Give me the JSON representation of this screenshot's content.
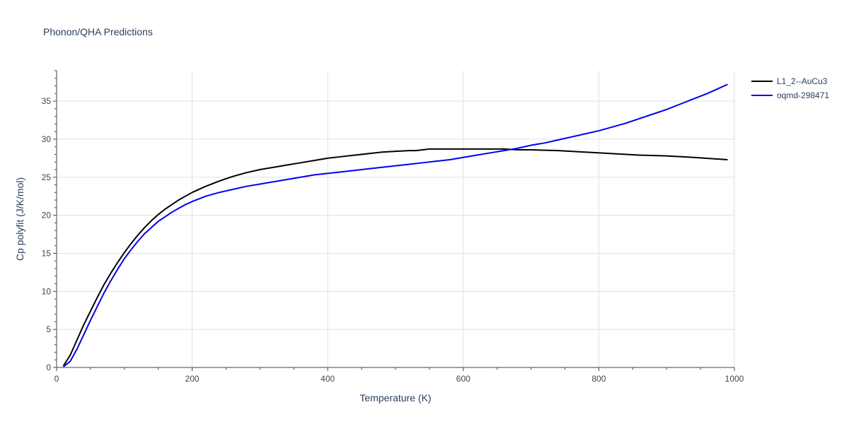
{
  "chart_data": {
    "type": "line",
    "title": "Phonon/QHA Predictions",
    "xlabel": "Temperature (K)",
    "ylabel": "Cp polyfit (J/K/mol)",
    "xlim": [
      0,
      1000
    ],
    "ylim": [
      0,
      39
    ],
    "xticks": [
      0,
      200,
      400,
      600,
      800,
      1000
    ],
    "yticks": [
      0,
      5,
      10,
      15,
      20,
      25,
      30,
      35
    ],
    "grid": true,
    "legend_position": "top-right",
    "series": [
      {
        "name": "L1_2--AuCu3",
        "color": "#000000",
        "x": [
          10,
          20,
          30,
          40,
          50,
          60,
          70,
          80,
          90,
          100,
          110,
          120,
          130,
          140,
          150,
          160,
          170,
          180,
          190,
          200,
          220,
          240,
          260,
          280,
          300,
          320,
          340,
          360,
          380,
          400,
          420,
          440,
          460,
          480,
          500,
          520,
          530,
          540,
          550,
          560,
          570,
          580,
          600,
          620,
          640,
          660,
          680,
          700,
          740,
          780,
          820,
          860,
          900,
          940,
          990
        ],
        "y": [
          0.2,
          1.6,
          3.6,
          5.6,
          7.4,
          9.2,
          10.9,
          12.4,
          13.8,
          15.1,
          16.3,
          17.4,
          18.4,
          19.3,
          20.1,
          20.8,
          21.4,
          22.0,
          22.5,
          23.0,
          23.8,
          24.5,
          25.1,
          25.6,
          26.0,
          26.3,
          26.6,
          26.9,
          27.2,
          27.5,
          27.7,
          27.9,
          28.1,
          28.3,
          28.4,
          28.5,
          28.5,
          28.6,
          28.7,
          28.7,
          28.7,
          28.7,
          28.7,
          28.7,
          28.7,
          28.7,
          28.6,
          28.6,
          28.5,
          28.3,
          28.1,
          27.9,
          27.8,
          27.6,
          27.3
        ]
      },
      {
        "name": "oqmd-298471",
        "color": "#0000ee",
        "x": [
          10,
          20,
          30,
          40,
          50,
          60,
          70,
          80,
          90,
          100,
          110,
          120,
          130,
          140,
          150,
          160,
          170,
          180,
          190,
          200,
          220,
          240,
          260,
          280,
          300,
          320,
          340,
          360,
          380,
          400,
          420,
          440,
          460,
          480,
          500,
          520,
          540,
          560,
          580,
          600,
          620,
          640,
          660,
          680,
          700,
          720,
          740,
          760,
          780,
          800,
          820,
          840,
          860,
          880,
          900,
          920,
          940,
          960,
          990
        ],
        "y": [
          0.1,
          0.8,
          2.4,
          4.3,
          6.2,
          8.0,
          9.8,
          11.4,
          12.9,
          14.3,
          15.5,
          16.6,
          17.6,
          18.4,
          19.2,
          19.8,
          20.4,
          20.9,
          21.4,
          21.8,
          22.5,
          23.0,
          23.4,
          23.8,
          24.1,
          24.4,
          24.7,
          25.0,
          25.3,
          25.5,
          25.7,
          25.9,
          26.1,
          26.3,
          26.5,
          26.7,
          26.9,
          27.1,
          27.3,
          27.6,
          27.9,
          28.2,
          28.5,
          28.8,
          29.2,
          29.5,
          29.9,
          30.3,
          30.7,
          31.1,
          31.6,
          32.1,
          32.7,
          33.3,
          33.9,
          34.6,
          35.3,
          36.0,
          37.2
        ]
      }
    ]
  }
}
